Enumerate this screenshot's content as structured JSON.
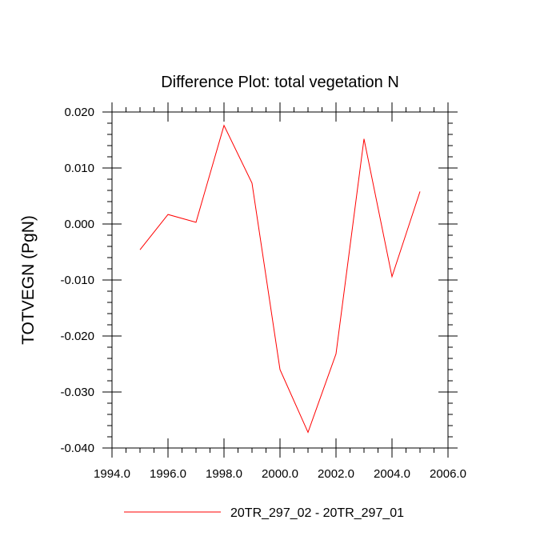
{
  "chart_data": {
    "type": "line",
    "title": "Difference Plot: total vegetation N",
    "xlabel": "",
    "ylabel": "TOTVEGN  (PgN)",
    "xlim": [
      1994.0,
      2006.0
    ],
    "ylim": [
      -0.04,
      0.02
    ],
    "x_ticks": [
      1994.0,
      1996.0,
      1998.0,
      2000.0,
      2002.0,
      2004.0,
      2006.0
    ],
    "x_tick_labels": [
      "1994.0",
      "1996.0",
      "1998.0",
      "2000.0",
      "2002.0",
      "2004.0",
      "2006.0"
    ],
    "y_ticks": [
      0.02,
      0.01,
      0.0,
      -0.01,
      -0.02,
      -0.03,
      -0.04
    ],
    "y_tick_labels": [
      "0.020",
      "0.010",
      "0.000",
      "-0.010",
      "-0.020",
      "-0.030",
      "-0.040"
    ],
    "grid": false,
    "legend_position": "bottom",
    "series": [
      {
        "name": "20TR_297_02 - 20TR_297_01",
        "color": "#ff0000",
        "x": [
          1995,
          1996,
          1997,
          1998,
          1999,
          2000,
          2001,
          2002,
          2003,
          2004,
          2005
        ],
        "y": [
          -0.0046,
          0.0017,
          0.0003,
          0.0176,
          0.0073,
          -0.026,
          -0.0372,
          -0.0232,
          0.0152,
          -0.0094,
          0.0058
        ]
      }
    ]
  }
}
